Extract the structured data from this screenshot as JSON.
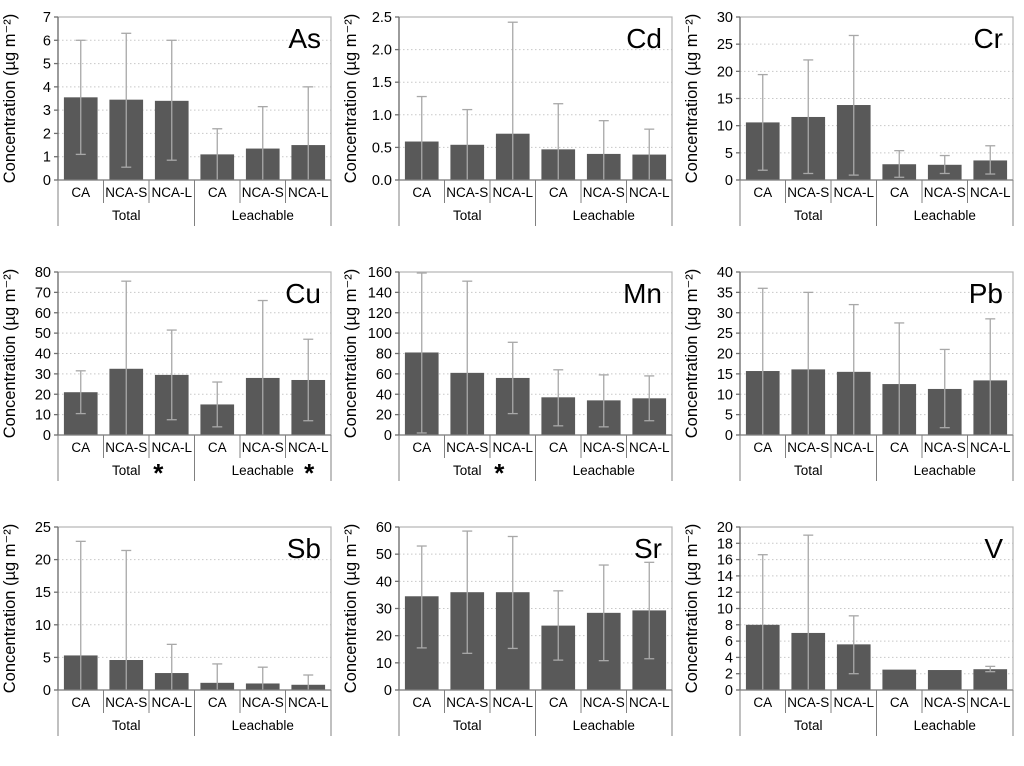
{
  "figure": {
    "ylabel": "Concentration (µg m⁻²)",
    "series_labels": [
      "CA",
      "NCA-S",
      "NCA-L"
    ],
    "group_labels": [
      "Total",
      "Leachable"
    ],
    "asterisk_symbol": "*",
    "colors": {
      "bar_fill": "#595959",
      "error_bar": "#a8a8a8",
      "gridline": "#c8c8c8",
      "plot_border": "#b3b3b3",
      "axis_line": "#808080",
      "text": "#000000"
    }
  },
  "chart_data": [
    {
      "type": "bar",
      "title": "As",
      "ylabel": "Concentration (µg m⁻²)",
      "ylim": [
        0,
        7
      ],
      "ytick_step": 1,
      "ytick_labels": [
        "0",
        "1",
        "2",
        "3",
        "4",
        "5",
        "6",
        "7"
      ],
      "grid": true,
      "groups": [
        {
          "label": "Total",
          "asterisk": false
        },
        {
          "label": "Leachable",
          "asterisk": false
        }
      ],
      "bars": [
        {
          "group": "Total",
          "label": "CA",
          "value": 3.55,
          "err_low": 1.1,
          "err_high": 6.0
        },
        {
          "group": "Total",
          "label": "NCA-S",
          "value": 3.45,
          "err_low": 0.55,
          "err_high": 6.3
        },
        {
          "group": "Total",
          "label": "NCA-L",
          "value": 3.4,
          "err_low": 0.85,
          "err_high": 6.0
        },
        {
          "group": "Leachable",
          "label": "CA",
          "value": 1.1,
          "err_low": 0,
          "err_high": 2.2
        },
        {
          "group": "Leachable",
          "label": "NCA-S",
          "value": 1.35,
          "err_low": 0,
          "err_high": 3.15
        },
        {
          "group": "Leachable",
          "label": "NCA-L",
          "value": 1.5,
          "err_low": 0,
          "err_high": 4.0
        }
      ]
    },
    {
      "type": "bar",
      "title": "Cd",
      "ylabel": "Concentration (µg m⁻²)",
      "ylim": [
        0,
        2.5
      ],
      "ytick_step": 0.5,
      "ytick_labels": [
        "0.0",
        "0.5",
        "1.0",
        "1.5",
        "2.0",
        "2.5"
      ],
      "grid": true,
      "groups": [
        {
          "label": "Total",
          "asterisk": false
        },
        {
          "label": "Leachable",
          "asterisk": false
        }
      ],
      "bars": [
        {
          "group": "Total",
          "label": "CA",
          "value": 0.59,
          "err_low": 0,
          "err_high": 1.28
        },
        {
          "group": "Total",
          "label": "NCA-S",
          "value": 0.54,
          "err_low": 0,
          "err_high": 1.08
        },
        {
          "group": "Total",
          "label": "NCA-L",
          "value": 0.71,
          "err_low": 0,
          "err_high": 2.42
        },
        {
          "group": "Leachable",
          "label": "CA",
          "value": 0.47,
          "err_low": 0,
          "err_high": 1.17
        },
        {
          "group": "Leachable",
          "label": "NCA-S",
          "value": 0.4,
          "err_low": 0,
          "err_high": 0.91
        },
        {
          "group": "Leachable",
          "label": "NCA-L",
          "value": 0.39,
          "err_low": 0,
          "err_high": 0.78
        }
      ]
    },
    {
      "type": "bar",
      "title": "Cr",
      "ylabel": "Concentration (µg m⁻²)",
      "ylim": [
        0,
        30
      ],
      "ytick_step": 5,
      "ytick_labels": [
        "0",
        "5",
        "10",
        "15",
        "20",
        "25",
        "30"
      ],
      "grid": true,
      "groups": [
        {
          "label": "Total",
          "asterisk": false
        },
        {
          "label": "Leachable",
          "asterisk": false
        }
      ],
      "bars": [
        {
          "group": "Total",
          "label": "CA",
          "value": 10.6,
          "err_low": 1.8,
          "err_high": 19.4
        },
        {
          "group": "Total",
          "label": "NCA-S",
          "value": 11.6,
          "err_low": 1.2,
          "err_high": 22.1
        },
        {
          "group": "Total",
          "label": "NCA-L",
          "value": 13.8,
          "err_low": 0.9,
          "err_high": 26.6
        },
        {
          "group": "Leachable",
          "label": "CA",
          "value": 2.9,
          "err_low": 0.5,
          "err_high": 5.4
        },
        {
          "group": "Leachable",
          "label": "NCA-S",
          "value": 2.8,
          "err_low": 1.2,
          "err_high": 4.5
        },
        {
          "group": "Leachable",
          "label": "NCA-L",
          "value": 3.6,
          "err_low": 1.1,
          "err_high": 6.3
        }
      ]
    },
    {
      "type": "bar",
      "title": "Cu",
      "ylabel": "Concentration (µg m⁻²)",
      "ylim": [
        0,
        80
      ],
      "ytick_step": 10,
      "ytick_labels": [
        "0",
        "10",
        "20",
        "30",
        "40",
        "50",
        "60",
        "70",
        "80"
      ],
      "grid": true,
      "groups": [
        {
          "label": "Total",
          "asterisk": true
        },
        {
          "label": "Leachable",
          "asterisk": true
        }
      ],
      "bars": [
        {
          "group": "Total",
          "label": "CA",
          "value": 21,
          "err_low": 10.5,
          "err_high": 31.5
        },
        {
          "group": "Total",
          "label": "NCA-S",
          "value": 32.5,
          "err_low": 0,
          "err_high": 75.5
        },
        {
          "group": "Total",
          "label": "NCA-L",
          "value": 29.5,
          "err_low": 7.5,
          "err_high": 51.5
        },
        {
          "group": "Leachable",
          "label": "CA",
          "value": 15,
          "err_low": 4,
          "err_high": 26
        },
        {
          "group": "Leachable",
          "label": "NCA-S",
          "value": 28,
          "err_low": 0,
          "err_high": 66
        },
        {
          "group": "Leachable",
          "label": "NCA-L",
          "value": 27,
          "err_low": 7,
          "err_high": 47
        }
      ]
    },
    {
      "type": "bar",
      "title": "Mn",
      "ylabel": "Concentration (µg m⁻²)",
      "ylim": [
        0,
        160
      ],
      "ytick_step": 20,
      "ytick_labels": [
        "0",
        "20",
        "40",
        "60",
        "80",
        "100",
        "120",
        "140",
        "160"
      ],
      "grid": true,
      "groups": [
        {
          "label": "Total",
          "asterisk": true
        },
        {
          "label": "Leachable",
          "asterisk": false
        }
      ],
      "bars": [
        {
          "group": "Total",
          "label": "CA",
          "value": 81,
          "err_low": 2,
          "err_high": 159
        },
        {
          "group": "Total",
          "label": "NCA-S",
          "value": 61,
          "err_low": 0,
          "err_high": 151
        },
        {
          "group": "Total",
          "label": "NCA-L",
          "value": 56,
          "err_low": 21,
          "err_high": 91
        },
        {
          "group": "Leachable",
          "label": "CA",
          "value": 37,
          "err_low": 9,
          "err_high": 64
        },
        {
          "group": "Leachable",
          "label": "NCA-S",
          "value": 34,
          "err_low": 8,
          "err_high": 59
        },
        {
          "group": "Leachable",
          "label": "NCA-L",
          "value": 36,
          "err_low": 14,
          "err_high": 58
        }
      ]
    },
    {
      "type": "bar",
      "title": "Pb",
      "ylabel": "Concentration (µg m⁻²)",
      "ylim": [
        0,
        40
      ],
      "ytick_step": 5,
      "ytick_labels": [
        "0",
        "5",
        "10",
        "15",
        "20",
        "25",
        "30",
        "35",
        "40"
      ],
      "grid": true,
      "groups": [
        {
          "label": "Total",
          "asterisk": false
        },
        {
          "label": "Leachable",
          "asterisk": false
        }
      ],
      "bars": [
        {
          "group": "Total",
          "label": "CA",
          "value": 15.7,
          "err_low": 0,
          "err_high": 36
        },
        {
          "group": "Total",
          "label": "NCA-S",
          "value": 16.1,
          "err_low": 0,
          "err_high": 35
        },
        {
          "group": "Total",
          "label": "NCA-L",
          "value": 15.5,
          "err_low": 0,
          "err_high": 32
        },
        {
          "group": "Leachable",
          "label": "CA",
          "value": 12.5,
          "err_low": 0,
          "err_high": 27.5
        },
        {
          "group": "Leachable",
          "label": "NCA-S",
          "value": 11.3,
          "err_low": 1.8,
          "err_high": 21
        },
        {
          "group": "Leachable",
          "label": "NCA-L",
          "value": 13.4,
          "err_low": 0,
          "err_high": 28.5
        }
      ]
    },
    {
      "type": "bar",
      "title": "Sb",
      "ylabel": "Concentration (µg m⁻²)",
      "ylim": [
        0,
        25
      ],
      "ytick_step": 5,
      "ytick_labels": [
        "0",
        "5",
        "10",
        "15",
        "20",
        "25"
      ],
      "grid": true,
      "groups": [
        {
          "label": "Total",
          "asterisk": false
        },
        {
          "label": "Leachable",
          "asterisk": false
        }
      ],
      "bars": [
        {
          "group": "Total",
          "label": "CA",
          "value": 5.3,
          "err_low": 0,
          "err_high": 22.8
        },
        {
          "group": "Total",
          "label": "NCA-S",
          "value": 4.6,
          "err_low": 0,
          "err_high": 21.4
        },
        {
          "group": "Total",
          "label": "NCA-L",
          "value": 2.6,
          "err_low": 0,
          "err_high": 7.0
        },
        {
          "group": "Leachable",
          "label": "CA",
          "value": 1.1,
          "err_low": 0,
          "err_high": 4.0
        },
        {
          "group": "Leachable",
          "label": "NCA-S",
          "value": 1.0,
          "err_low": 0,
          "err_high": 3.5
        },
        {
          "group": "Leachable",
          "label": "NCA-L",
          "value": 0.8,
          "err_low": 0,
          "err_high": 2.3
        }
      ]
    },
    {
      "type": "bar",
      "title": "Sr",
      "ylabel": "Concentration (µg m⁻²)",
      "ylim": [
        0,
        60
      ],
      "ytick_step": 10,
      "ytick_labels": [
        "0",
        "10",
        "20",
        "30",
        "40",
        "50",
        "60"
      ],
      "grid": true,
      "groups": [
        {
          "label": "Total",
          "asterisk": false
        },
        {
          "label": "Leachable",
          "asterisk": false
        }
      ],
      "bars": [
        {
          "group": "Total",
          "label": "CA",
          "value": 34.5,
          "err_low": 15.5,
          "err_high": 53
        },
        {
          "group": "Total",
          "label": "NCA-S",
          "value": 36,
          "err_low": 13.5,
          "err_high": 58.5
        },
        {
          "group": "Total",
          "label": "NCA-L",
          "value": 36,
          "err_low": 15.3,
          "err_high": 56.5
        },
        {
          "group": "Leachable",
          "label": "CA",
          "value": 23.7,
          "err_low": 11,
          "err_high": 36.5
        },
        {
          "group": "Leachable",
          "label": "NCA-S",
          "value": 28.4,
          "err_low": 10.8,
          "err_high": 46
        },
        {
          "group": "Leachable",
          "label": "NCA-L",
          "value": 29.3,
          "err_low": 11.5,
          "err_high": 47
        }
      ]
    },
    {
      "type": "bar",
      "title": "V",
      "ylabel": "Concentration (µg m⁻²)",
      "ylim": [
        0,
        20
      ],
      "ytick_step": 2,
      "ytick_labels": [
        "0",
        "2",
        "4",
        "6",
        "8",
        "10",
        "12",
        "14",
        "16",
        "18",
        "20"
      ],
      "grid": true,
      "groups": [
        {
          "label": "Total",
          "asterisk": false
        },
        {
          "label": "Leachable",
          "asterisk": false
        }
      ],
      "bars": [
        {
          "group": "Total",
          "label": "CA",
          "value": 8.0,
          "err_low": 0,
          "err_high": 16.6
        },
        {
          "group": "Total",
          "label": "NCA-S",
          "value": 7.0,
          "err_low": 0,
          "err_high": 19.0
        },
        {
          "group": "Total",
          "label": "NCA-L",
          "value": 5.6,
          "err_low": 2.0,
          "err_high": 9.1
        },
        {
          "group": "Leachable",
          "label": "CA",
          "value": 2.5,
          "err_low": null,
          "err_high": null
        },
        {
          "group": "Leachable",
          "label": "NCA-S",
          "value": 2.45,
          "err_low": null,
          "err_high": null
        },
        {
          "group": "Leachable",
          "label": "NCA-L",
          "value": 2.55,
          "err_low": 2.25,
          "err_high": 2.9
        }
      ]
    }
  ]
}
